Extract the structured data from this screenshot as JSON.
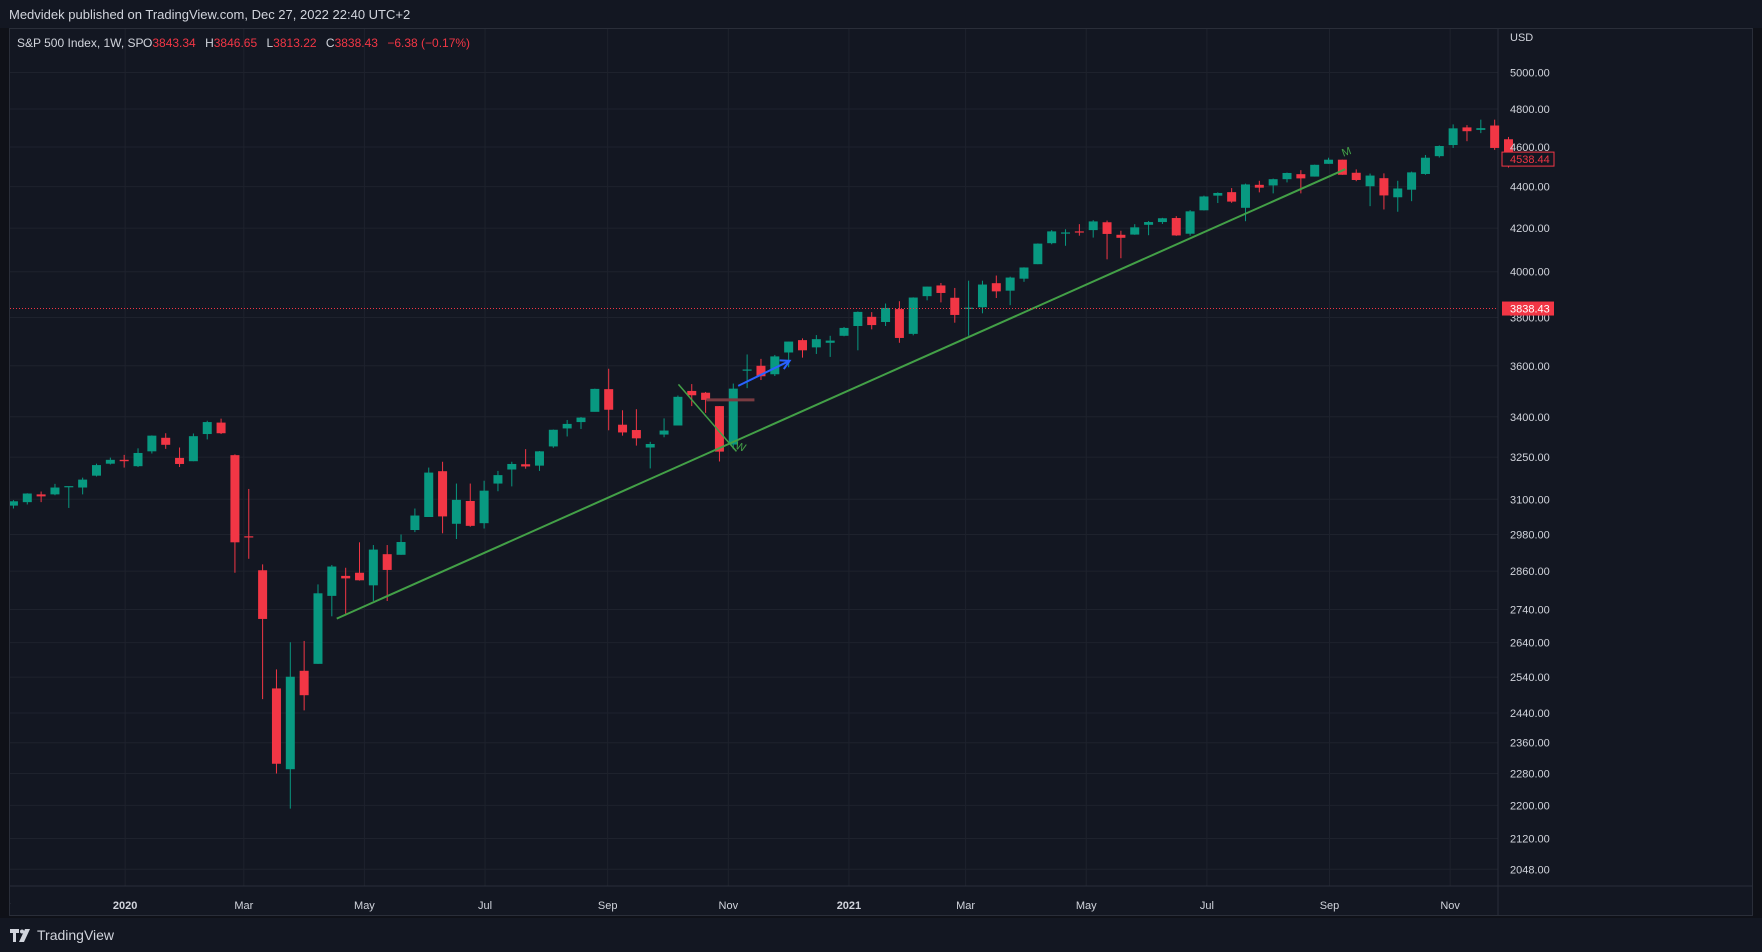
{
  "header": {
    "publish_text": "Medvidek published on TradingView.com, Dec 27, 2022 22:40 UTC+2"
  },
  "legend": {
    "symbol": "S&P 500 Index, 1W, SP",
    "o_label": "O",
    "o_value": "3843.34",
    "h_label": "H",
    "h_value": "3846.65",
    "l_label": "L",
    "l_value": "3813.22",
    "c_label": "C",
    "c_value": "3838.43",
    "change": "−6.38 (−0.17%)"
  },
  "footer": {
    "brand": "TradingView"
  },
  "colors": {
    "background": "#131722",
    "grid": "#1e222d",
    "up": "#089981",
    "down": "#f23645",
    "trendline": "#43a047",
    "arrow": "#2962ff",
    "text": "#d1d4dc"
  },
  "chart_data": {
    "type": "candlestick",
    "currency": "USD",
    "y_scale": "log",
    "ylim": [
      2010,
      5250
    ],
    "y_ticks": [
      5000.0,
      4800.0,
      4600.0,
      4400.0,
      4200.0,
      4000.0,
      3800.0,
      3600.0,
      3400.0,
      3250.0,
      3100.0,
      2980.0,
      2860.0,
      2740.0,
      2640.0,
      2540.0,
      2440.0,
      2360.0,
      2280.0,
      2200.0,
      2120.0,
      2048.0
    ],
    "x_ticks": [
      {
        "label": "ov",
        "date": "2019-11-01",
        "bold": false
      },
      {
        "label": "2020",
        "date": "2020-01-01",
        "bold": true
      },
      {
        "label": "Mar",
        "date": "2020-03-01",
        "bold": false
      },
      {
        "label": "May",
        "date": "2020-05-01",
        "bold": false
      },
      {
        "label": "Jul",
        "date": "2020-07-01",
        "bold": false
      },
      {
        "label": "Sep",
        "date": "2020-09-01",
        "bold": false
      },
      {
        "label": "Nov",
        "date": "2020-11-01",
        "bold": false
      },
      {
        "label": "2021",
        "date": "2021-01-01",
        "bold": true
      },
      {
        "label": "Mar",
        "date": "2021-03-01",
        "bold": false
      },
      {
        "label": "May",
        "date": "2021-05-01",
        "bold": false
      },
      {
        "label": "Jul",
        "date": "2021-07-01",
        "bold": false
      },
      {
        "label": "Sep",
        "date": "2021-09-01",
        "bold": false
      },
      {
        "label": "Nov",
        "date": "2021-11-01",
        "bold": false
      }
    ],
    "candles": [
      {
        "date": "2019-10-28",
        "o": 3066,
        "h": 3078,
        "l": 3050,
        "c": 3068
      },
      {
        "date": "2019-11-04",
        "o": 3078,
        "h": 3097,
        "l": 3068,
        "c": 3093
      },
      {
        "date": "2019-11-11",
        "o": 3090,
        "h": 3121,
        "l": 3082,
        "c": 3120
      },
      {
        "date": "2019-11-18",
        "o": 3117,
        "h": 3127,
        "l": 3090,
        "c": 3110
      },
      {
        "date": "2019-11-25",
        "o": 3117,
        "h": 3154,
        "l": 3114,
        "c": 3141
      },
      {
        "date": "2019-12-02",
        "o": 3143,
        "h": 3144,
        "l": 3070,
        "c": 3146
      },
      {
        "date": "2019-12-09",
        "o": 3141,
        "h": 3176,
        "l": 3117,
        "c": 3169
      },
      {
        "date": "2019-12-16",
        "o": 3183,
        "h": 3226,
        "l": 3180,
        "c": 3221
      },
      {
        "date": "2019-12-23",
        "o": 3226,
        "h": 3248,
        "l": 3223,
        "c": 3240
      },
      {
        "date": "2019-12-30",
        "o": 3240,
        "h": 3258,
        "l": 3212,
        "c": 3235
      },
      {
        "date": "2020-01-06",
        "o": 3217,
        "h": 3282,
        "l": 3214,
        "c": 3265
      },
      {
        "date": "2020-01-13",
        "o": 3271,
        "h": 3330,
        "l": 3263,
        "c": 3329
      },
      {
        "date": "2020-01-20",
        "o": 3321,
        "h": 3338,
        "l": 3280,
        "c": 3295
      },
      {
        "date": "2020-01-27",
        "o": 3247,
        "h": 3285,
        "l": 3214,
        "c": 3225
      },
      {
        "date": "2020-02-03",
        "o": 3235,
        "h": 3337,
        "l": 3235,
        "c": 3327
      },
      {
        "date": "2020-02-10",
        "o": 3335,
        "h": 3385,
        "l": 3315,
        "c": 3380
      },
      {
        "date": "2020-02-17",
        "o": 3378,
        "h": 3393,
        "l": 3335,
        "c": 3338
      },
      {
        "date": "2020-02-24",
        "o": 3257,
        "h": 3260,
        "l": 2855,
        "c": 2954
      },
      {
        "date": "2020-03-02",
        "o": 2974,
        "h": 3136,
        "l": 2900,
        "c": 2972
      },
      {
        "date": "2020-03-09",
        "o": 2863,
        "h": 2882,
        "l": 2478,
        "c": 2711
      },
      {
        "date": "2020-03-16",
        "o": 2508,
        "h": 2562,
        "l": 2280,
        "c": 2305
      },
      {
        "date": "2020-03-23",
        "o": 2291,
        "h": 2641,
        "l": 2192,
        "c": 2541
      },
      {
        "date": "2020-03-30",
        "o": 2558,
        "h": 2645,
        "l": 2447,
        "c": 2489
      },
      {
        "date": "2020-04-06",
        "o": 2578,
        "h": 2818,
        "l": 2578,
        "c": 2790
      },
      {
        "date": "2020-04-13",
        "o": 2782,
        "h": 2880,
        "l": 2719,
        "c": 2875
      },
      {
        "date": "2020-04-20",
        "o": 2845,
        "h": 2871,
        "l": 2727,
        "c": 2837
      },
      {
        "date": "2020-04-27",
        "o": 2855,
        "h": 2954,
        "l": 2830,
        "c": 2831
      },
      {
        "date": "2020-05-04",
        "o": 2815,
        "h": 2945,
        "l": 2766,
        "c": 2930
      },
      {
        "date": "2020-05-11",
        "o": 2915,
        "h": 2945,
        "l": 2766,
        "c": 2864
      },
      {
        "date": "2020-05-18",
        "o": 2913,
        "h": 2980,
        "l": 2913,
        "c": 2955
      },
      {
        "date": "2020-05-25",
        "o": 2995,
        "h": 3068,
        "l": 2988,
        "c": 3044
      },
      {
        "date": "2020-06-01",
        "o": 3039,
        "h": 3212,
        "l": 3039,
        "c": 3194
      },
      {
        "date": "2020-06-08",
        "o": 3199,
        "h": 3233,
        "l": 2984,
        "c": 3041
      },
      {
        "date": "2020-06-15",
        "o": 3016,
        "h": 3155,
        "l": 2965,
        "c": 3098
      },
      {
        "date": "2020-06-22",
        "o": 3094,
        "h": 3155,
        "l": 3006,
        "c": 3009
      },
      {
        "date": "2020-06-29",
        "o": 3018,
        "h": 3165,
        "l": 3000,
        "c": 3130
      },
      {
        "date": "2020-07-06",
        "o": 3155,
        "h": 3200,
        "l": 3128,
        "c": 3185
      },
      {
        "date": "2020-07-13",
        "o": 3205,
        "h": 3233,
        "l": 3145,
        "c": 3225
      },
      {
        "date": "2020-07-20",
        "o": 3224,
        "h": 3279,
        "l": 3208,
        "c": 3216
      },
      {
        "date": "2020-07-27",
        "o": 3219,
        "h": 3272,
        "l": 3200,
        "c": 3271
      },
      {
        "date": "2020-08-03",
        "o": 3289,
        "h": 3352,
        "l": 3284,
        "c": 3351
      },
      {
        "date": "2020-08-10",
        "o": 3356,
        "h": 3388,
        "l": 3326,
        "c": 3373
      },
      {
        "date": "2020-08-17",
        "o": 3380,
        "h": 3399,
        "l": 3354,
        "c": 3397
      },
      {
        "date": "2020-08-24",
        "o": 3419,
        "h": 3509,
        "l": 3420,
        "c": 3508
      },
      {
        "date": "2020-08-31",
        "o": 3507,
        "h": 3588,
        "l": 3349,
        "c": 3427
      },
      {
        "date": "2020-09-07",
        "o": 3370,
        "h": 3425,
        "l": 3329,
        "c": 3341
      },
      {
        "date": "2020-09-14",
        "o": 3350,
        "h": 3429,
        "l": 3292,
        "c": 3319
      },
      {
        "date": "2020-09-21",
        "o": 3285,
        "h": 3306,
        "l": 3209,
        "c": 3298
      },
      {
        "date": "2020-09-28",
        "o": 3333,
        "h": 3394,
        "l": 3323,
        "c": 3348
      },
      {
        "date": "2020-10-05",
        "o": 3367,
        "h": 3482,
        "l": 3367,
        "c": 3477
      },
      {
        "date": "2020-10-12",
        "o": 3500,
        "h": 3527,
        "l": 3441,
        "c": 3483
      },
      {
        "date": "2020-10-19",
        "o": 3493,
        "h": 3496,
        "l": 3415,
        "c": 3465
      },
      {
        "date": "2020-10-26",
        "o": 3441,
        "h": 3441,
        "l": 3234,
        "c": 3270
      },
      {
        "date": "2020-11-02",
        "o": 3296,
        "h": 3529,
        "l": 3279,
        "c": 3509
      },
      {
        "date": "2020-11-09",
        "o": 3583,
        "h": 3646,
        "l": 3511,
        "c": 3585
      },
      {
        "date": "2020-11-16",
        "o": 3600,
        "h": 3628,
        "l": 3543,
        "c": 3558
      },
      {
        "date": "2020-11-23",
        "o": 3566,
        "h": 3644,
        "l": 3559,
        "c": 3638
      },
      {
        "date": "2020-11-30",
        "o": 3654,
        "h": 3699,
        "l": 3594,
        "c": 3699
      },
      {
        "date": "2020-12-07",
        "o": 3705,
        "h": 3712,
        "l": 3633,
        "c": 3663
      },
      {
        "date": "2020-12-14",
        "o": 3675,
        "h": 3726,
        "l": 3648,
        "c": 3709
      },
      {
        "date": "2020-12-21",
        "o": 3694,
        "h": 3723,
        "l": 3636,
        "c": 3703
      },
      {
        "date": "2020-12-28",
        "o": 3723,
        "h": 3760,
        "l": 3721,
        "c": 3756
      },
      {
        "date": "2021-01-04",
        "o": 3764,
        "h": 3826,
        "l": 3663,
        "c": 3824
      },
      {
        "date": "2021-01-11",
        "o": 3803,
        "h": 3823,
        "l": 3750,
        "c": 3768
      },
      {
        "date": "2021-01-18",
        "o": 3781,
        "h": 3860,
        "l": 3764,
        "c": 3841
      },
      {
        "date": "2021-01-25",
        "o": 3836,
        "h": 3870,
        "l": 3694,
        "c": 3714
      },
      {
        "date": "2021-02-01",
        "o": 3731,
        "h": 3887,
        "l": 3725,
        "c": 3886
      },
      {
        "date": "2021-02-08",
        "o": 3892,
        "h": 3934,
        "l": 3874,
        "c": 3934
      },
      {
        "date": "2021-02-15",
        "o": 3939,
        "h": 3950,
        "l": 3865,
        "c": 3906
      },
      {
        "date": "2021-02-22",
        "o": 3885,
        "h": 3928,
        "l": 3778,
        "c": 3811
      },
      {
        "date": "2021-03-01",
        "o": 3842,
        "h": 3960,
        "l": 3723,
        "c": 3842
      },
      {
        "date": "2021-03-08",
        "o": 3844,
        "h": 3960,
        "l": 3818,
        "c": 3943
      },
      {
        "date": "2021-03-15",
        "o": 3949,
        "h": 3983,
        "l": 3884,
        "c": 3913
      },
      {
        "date": "2021-03-22",
        "o": 3916,
        "h": 3978,
        "l": 3853,
        "c": 3974
      },
      {
        "date": "2021-03-29",
        "o": 3969,
        "h": 4020,
        "l": 3955,
        "c": 4019
      },
      {
        "date": "2021-04-05",
        "o": 4034,
        "h": 4129,
        "l": 4034,
        "c": 4128
      },
      {
        "date": "2021-04-12",
        "o": 4130,
        "h": 4191,
        "l": 4125,
        "c": 4185
      },
      {
        "date": "2021-04-19",
        "o": 4179,
        "h": 4195,
        "l": 4118,
        "c": 4180
      },
      {
        "date": "2021-04-26",
        "o": 4185,
        "h": 4219,
        "l": 4165,
        "c": 4181
      },
      {
        "date": "2021-05-03",
        "o": 4191,
        "h": 4238,
        "l": 4156,
        "c": 4232
      },
      {
        "date": "2021-05-10",
        "o": 4228,
        "h": 4236,
        "l": 4056,
        "c": 4173
      },
      {
        "date": "2021-05-17",
        "o": 4169,
        "h": 4188,
        "l": 4061,
        "c": 4155
      },
      {
        "date": "2021-05-24",
        "o": 4170,
        "h": 4219,
        "l": 4169,
        "c": 4204
      },
      {
        "date": "2021-05-31",
        "o": 4216,
        "h": 4234,
        "l": 4167,
        "c": 4229
      },
      {
        "date": "2021-06-07",
        "o": 4229,
        "h": 4249,
        "l": 4220,
        "c": 4247
      },
      {
        "date": "2021-06-14",
        "o": 4248,
        "h": 4257,
        "l": 4164,
        "c": 4166
      },
      {
        "date": "2021-06-21",
        "o": 4174,
        "h": 4286,
        "l": 4165,
        "c": 4280
      },
      {
        "date": "2021-06-28",
        "o": 4285,
        "h": 4356,
        "l": 4284,
        "c": 4352
      },
      {
        "date": "2021-07-05",
        "o": 4356,
        "h": 4372,
        "l": 4320,
        "c": 4369
      },
      {
        "date": "2021-07-12",
        "o": 4373,
        "h": 4393,
        "l": 4321,
        "c": 4327
      },
      {
        "date": "2021-07-19",
        "o": 4297,
        "h": 4415,
        "l": 4233,
        "c": 4411
      },
      {
        "date": "2021-07-26",
        "o": 4409,
        "h": 4429,
        "l": 4372,
        "c": 4395
      },
      {
        "date": "2021-08-02",
        "o": 4406,
        "h": 4440,
        "l": 4367,
        "c": 4437
      },
      {
        "date": "2021-08-09",
        "o": 4437,
        "h": 4470,
        "l": 4421,
        "c": 4468
      },
      {
        "date": "2021-08-16",
        "o": 4462,
        "h": 4482,
        "l": 4367,
        "c": 4441
      },
      {
        "date": "2021-08-23",
        "o": 4450,
        "h": 4510,
        "l": 4450,
        "c": 4509
      },
      {
        "date": "2021-08-30",
        "o": 4514,
        "h": 4545,
        "l": 4514,
        "c": 4535
      },
      {
        "date": "2021-09-06",
        "o": 4535,
        "h": 4535,
        "l": 4459,
        "c": 4459
      },
      {
        "date": "2021-09-13",
        "o": 4469,
        "h": 4486,
        "l": 4427,
        "c": 4433
      },
      {
        "date": "2021-09-20",
        "o": 4402,
        "h": 4465,
        "l": 4305,
        "c": 4455
      },
      {
        "date": "2021-09-27",
        "o": 4442,
        "h": 4466,
        "l": 4289,
        "c": 4357
      },
      {
        "date": "2021-10-04",
        "o": 4348,
        "h": 4429,
        "l": 4278,
        "c": 4391
      },
      {
        "date": "2021-10-11",
        "o": 4385,
        "h": 4475,
        "l": 4329,
        "c": 4471
      },
      {
        "date": "2021-10-18",
        "o": 4463,
        "h": 4559,
        "l": 4459,
        "c": 4545
      },
      {
        "date": "2021-10-25",
        "o": 4553,
        "h": 4608,
        "l": 4546,
        "c": 4605
      },
      {
        "date": "2021-11-01",
        "o": 4610,
        "h": 4718,
        "l": 4595,
        "c": 4697
      },
      {
        "date": "2021-11-08",
        "o": 4702,
        "h": 4714,
        "l": 4630,
        "c": 4682
      },
      {
        "date": "2021-11-15",
        "o": 4689,
        "h": 4743,
        "l": 4672,
        "c": 4698
      },
      {
        "date": "2021-11-22",
        "o": 4712,
        "h": 4743,
        "l": 4585,
        "c": 4595
      },
      {
        "date": "2021-11-29",
        "o": 4640,
        "h": 4652,
        "l": 4495,
        "c": 4538
      }
    ],
    "last_price_label": "4538.44",
    "price_line_label": "3838.43",
    "price_line_value": 3838.43,
    "annotations": {
      "trendline": {
        "from": {
          "date": "2020-04-17",
          "price": 2712
        },
        "to": {
          "date": "2021-09-09",
          "price": 4487
        }
      },
      "arrow": {
        "from": {
          "date": "2020-11-06",
          "price": 3520
        },
        "to": {
          "date": "2020-12-02",
          "price": 3620
        }
      },
      "w_label": "W",
      "m_label": "M"
    }
  }
}
